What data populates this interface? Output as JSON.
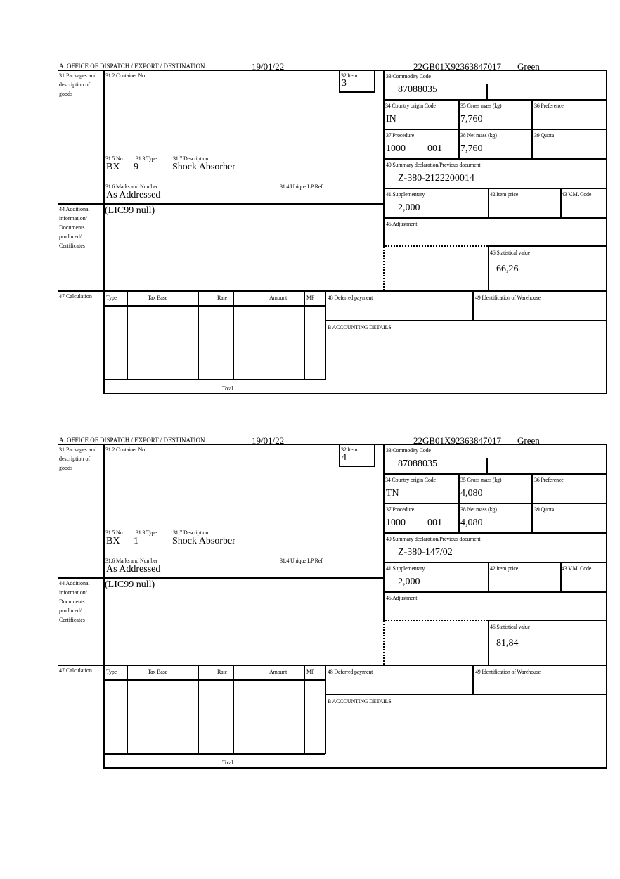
{
  "declarations": [
    {
      "header": {
        "office": "A. OFFICE OF DISPATCH / EXPORT / DESTINATION",
        "date": "19/01/22",
        "reference": "22GB01X92363847017",
        "route": "Green"
      },
      "labels": {
        "packages": "31 Packages and description of goods",
        "container_no": "31.2 Container No",
        "item": "32 Item",
        "no": "31.5 No",
        "type": "31.3 Type",
        "description": "31.7 Description",
        "marks": "31.6 Marks and Number",
        "unique_lp": "31.4 Unique LP Ref",
        "additional_info": "44 Additional information/ Documents produced/ Certificates",
        "commodity_code": "33 Commodity Code",
        "country_origin": "34 Country origin Code",
        "gross_mass": "35 Gross mass (kg)",
        "preference": "36 Preference",
        "procedure": "37 Procedure",
        "net_mass": "38 Net mass (kg)",
        "quota": "39 Quota",
        "summary_declaration": "40 Summary declaration/Previous document",
        "supplementary": "41 Supplementary",
        "item_price": "42 Item price",
        "vm_code": "43 V.M. Code",
        "adjustment": "45 Adjustment",
        "statistical_value": "46 Statistical value",
        "calculation": "47 Calculation",
        "calc_type": "Type",
        "calc_tax_base": "Tax Base",
        "calc_rate": "Rate",
        "calc_amount": "Amount",
        "calc_mp": "MP",
        "total": "Total",
        "deferred_payment": "48 Deferred payment",
        "warehouse": "49 Identification of Warehouse",
        "accounting": "B ACCOUNTING DETAILS"
      },
      "values": {
        "item": "3",
        "package_kind": "BX",
        "package_count": "9",
        "description": "Shock Absorber",
        "marks": "As Addressed",
        "additional_info": "(LIC99 null)",
        "commodity_code": "87088035",
        "country_origin": "IN",
        "gross_mass": "7,760",
        "procedure": "1000",
        "procedure_ext": "001",
        "net_mass": "7,760",
        "summary_declaration": "Z-380-2122200014",
        "supplementary": "2,000",
        "statistical_value": "66,26"
      }
    },
    {
      "header": {
        "office": "A. OFFICE OF DISPATCH / EXPORT / DESTINATION",
        "date": "19/01/22",
        "reference": "22GB01X92363847017",
        "route": "Green"
      },
      "labels": {
        "packages": "31 Packages and description of goods",
        "container_no": "31.2 Container No",
        "item": "32 Item",
        "no": "31.5 No",
        "type": "31.3 Type",
        "description": "31.7 Description",
        "marks": "31.6 Marks and Number",
        "unique_lp": "31.4 Unique LP Ref",
        "additional_info": "44 Additional information/ Documents produced/ Certificates",
        "commodity_code": "33 Commodity Code",
        "country_origin": "34 Country origin Code",
        "gross_mass": "35 Gross mass (kg)",
        "preference": "36 Preference",
        "procedure": "37 Procedure",
        "net_mass": "38 Net mass (kg)",
        "quota": "39 Quota",
        "summary_declaration": "40 Summary declaration/Previous document",
        "supplementary": "41 Supplementary",
        "item_price": "42 Item price",
        "vm_code": "43 V.M. Code",
        "adjustment": "45 Adjustment",
        "statistical_value": "46 Statistical value",
        "calculation": "47 Calculation",
        "calc_type": "Type",
        "calc_tax_base": "Tax Base",
        "calc_rate": "Rate",
        "calc_amount": "Amount",
        "calc_mp": "MP",
        "total": "Total",
        "deferred_payment": "48 Deferred payment",
        "warehouse": "49 Identification of Warehouse",
        "accounting": "B ACCOUNTING DETAILS"
      },
      "values": {
        "item": "4",
        "package_kind": "BX",
        "package_count": "1",
        "description": "Shock Absorber",
        "marks": "As Addressed",
        "additional_info": "(LIC99 null)",
        "commodity_code": "87088035",
        "country_origin": "TN",
        "gross_mass": "4,080",
        "procedure": "1000",
        "procedure_ext": "001",
        "net_mass": "4,080",
        "summary_declaration": "Z-380-147/02",
        "supplementary": "2,000",
        "statistical_value": "81,84"
      }
    }
  ]
}
